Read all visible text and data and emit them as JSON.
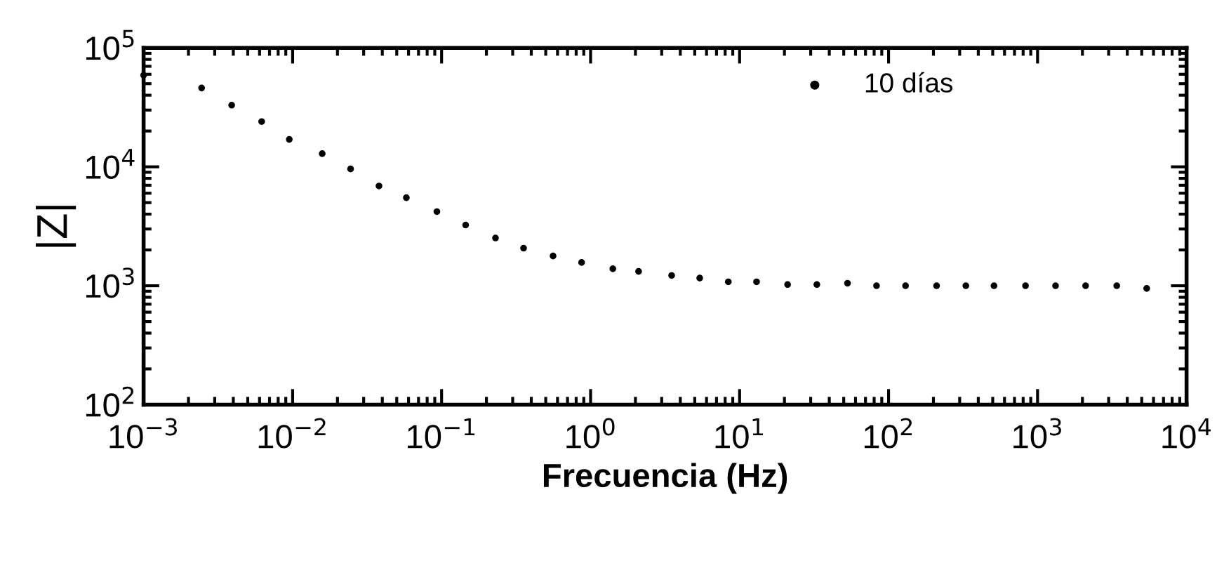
{
  "chart_data": {
    "type": "scatter",
    "xlabel": "Frecuencia (Hz)",
    "ylabel": "|Z|",
    "log": "xy",
    "grid": false,
    "legend": "top right",
    "marker": "circle",
    "xlim": [
      0.001,
      10000
    ],
    "ylim": [
      100,
      100000
    ],
    "xticks": [
      {
        "value": 0.001,
        "label": "10$^{−3}$"
      },
      {
        "value": 0.01,
        "label": "10$^{−2}$"
      },
      {
        "value": 0.1,
        "label": "10$^{−1}$"
      },
      {
        "value": 1,
        "label": "10$^{0}$"
      },
      {
        "value": 10,
        "label": "10$^{1}$"
      },
      {
        "value": 100,
        "label": "10$^{2}$"
      },
      {
        "value": 1000,
        "label": "10$^{3}$"
      },
      {
        "value": 10000,
        "label": "10$^{4}$"
      }
    ],
    "yticks": [
      {
        "value": 100,
        "label": "10$^{2}$"
      },
      {
        "value": 1000,
        "label": "10$^{3}$"
      },
      {
        "value": 10000,
        "label": "10$^{4}$"
      },
      {
        "value": 100000,
        "label": "10$^{5}$"
      }
    ],
    "series": [
      {
        "name": "10 días",
        "color": "#000000",
        "x": [
          0.001,
          0.00245,
          0.0039,
          0.0062,
          0.0095,
          0.0158,
          0.0245,
          0.038,
          0.058,
          0.093,
          0.145,
          0.23,
          0.355,
          0.56,
          0.87,
          1.41,
          2.1,
          3.5,
          5.4,
          8.4,
          13,
          21,
          33,
          53,
          83,
          130,
          210,
          330,
          510,
          830,
          1320,
          2100,
          3400,
          5400
        ],
        "values": [
          59000,
          46000,
          33000,
          24000,
          17000,
          12900,
          9600,
          6900,
          5500,
          4200,
          3240,
          2520,
          2070,
          1780,
          1570,
          1390,
          1320,
          1220,
          1160,
          1080,
          1080,
          1025,
          1025,
          1050,
          1000,
          1000,
          1000,
          1000,
          1000,
          1000,
          1000,
          1000,
          1000,
          950
        ]
      }
    ]
  }
}
